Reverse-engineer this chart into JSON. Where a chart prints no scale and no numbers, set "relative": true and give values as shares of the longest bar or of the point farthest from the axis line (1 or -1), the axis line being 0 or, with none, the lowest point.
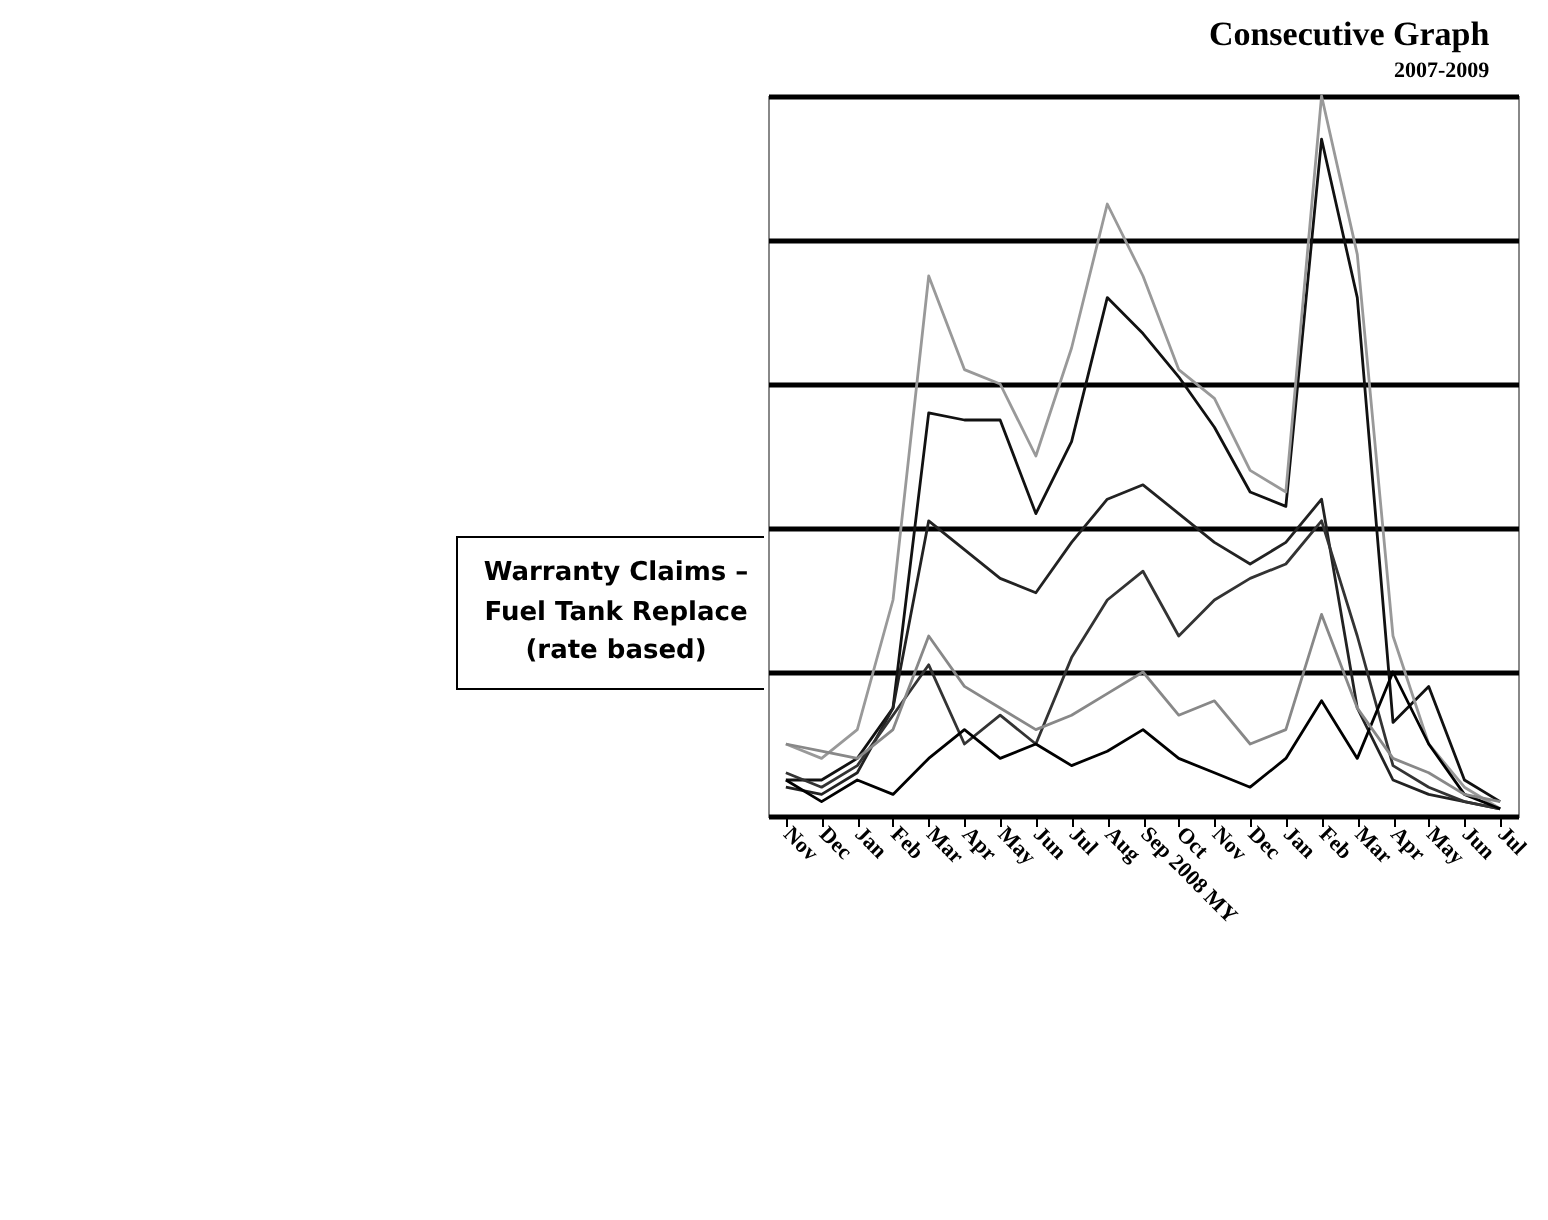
{
  "chart_data": {
    "type": "line",
    "title": "Consecutive Graph",
    "subtitle": "2007-2009",
    "relative": true,
    "grid": "y",
    "marker": "none",
    "line_style": "solid",
    "annotations": [
      "Warranty Claims – Fuel Tank Replace (rate based)"
    ],
    "categories": [
      "Nov",
      "Dec",
      "Jan",
      "Feb",
      "Mar",
      "Apr",
      "May",
      "Jun",
      "Jul",
      "Aug",
      "Sep 2008 MY",
      "Oct",
      "Nov",
      "Dec",
      "Jan",
      "Feb",
      "Mar",
      "Apr",
      "May",
      "Jun",
      "Jul"
    ],
    "series": [
      {
        "color": "#111111",
        "values": [
          0.05,
          0.05,
          0.08,
          0.15,
          0.56,
          0.55,
          0.55,
          0.42,
          0.52,
          0.72,
          0.67,
          0.61,
          0.54,
          0.45,
          0.43,
          0.94,
          0.72,
          0.13,
          0.18,
          0.05,
          0.02
        ]
      },
      {
        "color": "#999999",
        "values": [
          0.1,
          0.08,
          0.12,
          0.3,
          0.75,
          0.62,
          0.6,
          0.5,
          0.65,
          0.85,
          0.75,
          0.62,
          0.58,
          0.48,
          0.45,
          1.0,
          0.78,
          0.25,
          0.1,
          0.04,
          0.01
        ]
      },
      {
        "color": "#222222",
        "values": [
          0.04,
          0.03,
          0.06,
          0.15,
          0.41,
          0.37,
          0.33,
          0.31,
          0.38,
          0.44,
          0.46,
          0.42,
          0.38,
          0.35,
          0.38,
          0.44,
          0.15,
          0.05,
          0.03,
          0.02,
          0.01
        ]
      },
      {
        "color": "#333333",
        "values": [
          0.06,
          0.04,
          0.07,
          0.14,
          0.21,
          0.1,
          0.14,
          0.1,
          0.22,
          0.3,
          0.34,
          0.25,
          0.3,
          0.33,
          0.35,
          0.41,
          0.25,
          0.07,
          0.04,
          0.02,
          0.01
        ]
      },
      {
        "color": "#000000",
        "values": [
          0.05,
          0.02,
          0.05,
          0.03,
          0.08,
          0.12,
          0.08,
          0.1,
          0.07,
          0.09,
          0.12,
          0.08,
          0.06,
          0.04,
          0.08,
          0.16,
          0.08,
          0.2,
          0.1,
          0.03,
          0.01
        ]
      },
      {
        "color": "#888888",
        "values": [
          0.1,
          0.09,
          0.08,
          0.12,
          0.25,
          0.18,
          0.15,
          0.12,
          0.14,
          0.17,
          0.2,
          0.14,
          0.16,
          0.1,
          0.12,
          0.28,
          0.15,
          0.08,
          0.06,
          0.03,
          0.02
        ]
      }
    ]
  }
}
